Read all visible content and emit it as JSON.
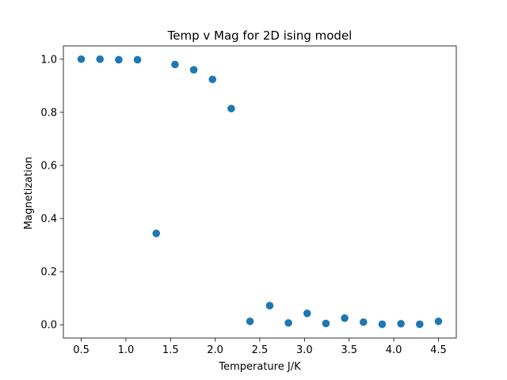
{
  "chart_data": {
    "type": "scatter",
    "title": "Temp v Mag for 2D ising model",
    "xlabel": "Temperature J/K",
    "ylabel": "Magnetization",
    "xlim": [
      0.3,
      4.7
    ],
    "ylim": [
      -0.05,
      1.05
    ],
    "xticks": [
      "0.5",
      "1.0",
      "1.5",
      "2.0",
      "2.5",
      "3.0",
      "3.5",
      "4.0",
      "4.5"
    ],
    "yticks": [
      "0.0",
      "0.2",
      "0.4",
      "0.6",
      "0.8",
      "1.0"
    ],
    "grid": false,
    "marker_color": "#1f77b4",
    "series": [
      {
        "x": [
          0.5,
          0.71,
          0.92,
          1.13,
          1.34,
          1.55,
          1.76,
          1.97,
          2.18,
          2.39,
          2.61,
          2.82,
          3.03,
          3.24,
          3.45,
          3.66,
          3.87,
          4.08,
          4.29,
          4.5
        ],
        "y": [
          1.0,
          1.0,
          0.998,
          0.998,
          0.344,
          0.98,
          0.96,
          0.924,
          0.814,
          0.013,
          0.072,
          0.007,
          0.043,
          0.005,
          0.025,
          0.01,
          0.002,
          0.004,
          0.002,
          0.013
        ]
      }
    ]
  }
}
